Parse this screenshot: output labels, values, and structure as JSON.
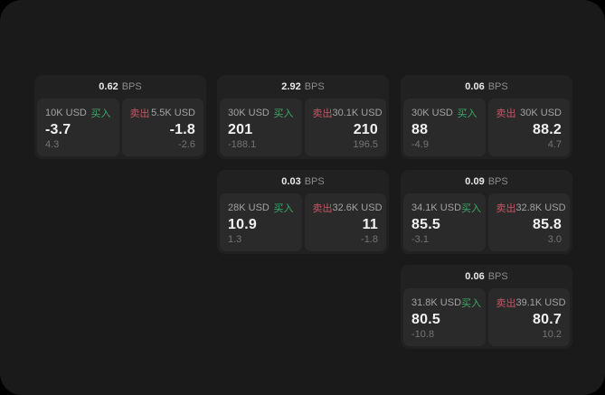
{
  "colors": {
    "page_background": "#1a1a1a",
    "card_background": "#212121",
    "panel_background": "#2a2a2a",
    "buy_green": "#3ca967",
    "sell_red": "#c75564"
  },
  "cards": [
    {
      "bps": "0.62",
      "unit": "BPS",
      "buy": {
        "amount": "10K USD",
        "action": "买入",
        "price": "-3.7",
        "delta": "4.3"
      },
      "sell": {
        "action": "卖出",
        "amount": "5.5K USD",
        "price": "-1.8",
        "delta": "-2.6"
      }
    },
    {
      "bps": "2.92",
      "unit": "BPS",
      "buy": {
        "amount": "30K USD",
        "action": "买入",
        "price": "201",
        "delta": "-188.1"
      },
      "sell": {
        "action": "卖出",
        "amount": "30.1K USD",
        "price": "210",
        "delta": "196.5"
      }
    },
    {
      "bps": "0.06",
      "unit": "BPS",
      "buy": {
        "amount": "30K USD",
        "action": "买入",
        "price": "88",
        "delta": "-4.9"
      },
      "sell": {
        "action": "卖出",
        "amount": "30K USD",
        "price": "88.2",
        "delta": "4.7"
      }
    },
    {
      "bps": "0.03",
      "unit": "BPS",
      "buy": {
        "amount": "28K USD",
        "action": "买入",
        "price": "10.9",
        "delta": "1.3"
      },
      "sell": {
        "action": "卖出",
        "amount": "32.6K USD",
        "price": "11",
        "delta": "-1.8"
      }
    },
    {
      "bps": "0.09",
      "unit": "BPS",
      "buy": {
        "amount": "34.1K USD",
        "action": "买入",
        "price": "85.5",
        "delta": "-3.1"
      },
      "sell": {
        "action": "卖出",
        "amount": "32.8K USD",
        "price": "85.8",
        "delta": "3.0"
      }
    },
    {
      "bps": "0.06",
      "unit": "BPS",
      "buy": {
        "amount": "31.8K USD",
        "action": "买入",
        "price": "80.5",
        "delta": "-10.8"
      },
      "sell": {
        "action": "卖出",
        "amount": "39.1K USD",
        "price": "80.7",
        "delta": "10.2"
      }
    }
  ]
}
